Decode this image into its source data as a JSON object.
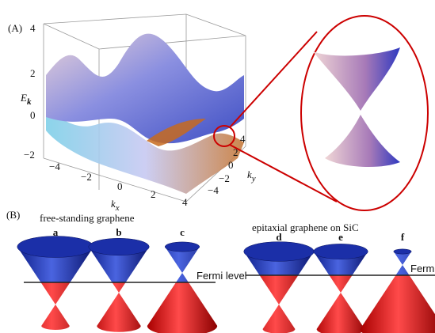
{
  "panel_a": {
    "label": "(A)",
    "energy_axis": {
      "title": "E",
      "subscript": "k",
      "ticks": [
        "4",
        "2",
        "0",
        "−2"
      ]
    },
    "kx_axis": {
      "title": "k",
      "subscript": "x",
      "ticks": [
        "−4",
        "−2",
        "0",
        "2",
        "4"
      ]
    },
    "ky_axis": {
      "title": "k",
      "subscript": "y",
      "ticks": [
        "4",
        "2",
        "0",
        "−2",
        "−4"
      ]
    }
  },
  "panel_b": {
    "label": "(B)",
    "groups": [
      {
        "title": "free-standing graphene",
        "cones": [
          "a",
          "b",
          "c"
        ],
        "fermi": "Fermi level"
      },
      {
        "title": "epitaxial graphene on SiC",
        "cones": [
          "d",
          "e",
          "f"
        ],
        "fermi": "Fermi level"
      }
    ]
  }
}
